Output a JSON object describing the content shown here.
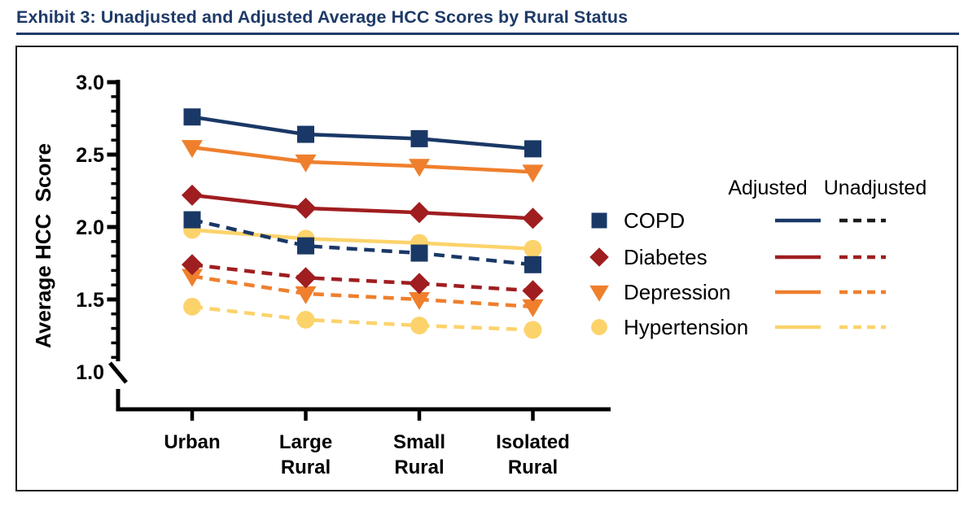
{
  "header": {
    "title": "Exhibit 3: Unadjusted and Adjusted Average HCC Scores by Rural Status"
  },
  "colors": {
    "title_navy": "#1e3a68",
    "axis_black": "#000000",
    "copd_navy": "#1a3866",
    "diabetes_red": "#a01d20",
    "depression_orange": "#ef7f2d",
    "hypertension_yellow": "#fcd36b",
    "legend_unadjusted_copd_black": "#1a1a1a"
  },
  "chart_data": {
    "type": "line",
    "title": "Exhibit 3: Unadjusted and Adjusted Average HCC Scores by Rural Status",
    "xlabel": "",
    "ylabel": "Average HCC  Score",
    "categories": [
      "Urban",
      "Large Rural",
      "Small Rural",
      "Isolated Rural"
    ],
    "x_tick_lines": [
      [
        "Urban"
      ],
      [
        "Large",
        "Rural"
      ],
      [
        "Small",
        "Rural"
      ],
      [
        "Isolated",
        "Rural"
      ]
    ],
    "y_ticks": [
      3.0,
      2.5,
      2.0,
      1.5,
      1.0
    ],
    "y_tick_labels": [
      "3.0",
      "2.5",
      "2.0",
      "1.5",
      "1.0"
    ],
    "ylim": [
      1.0,
      3.0
    ],
    "y_minor_tick_step": 0.1,
    "y_axis_break": true,
    "grid": false,
    "series": [
      {
        "name": "COPD",
        "variant": "Adjusted",
        "style": "solid",
        "marker": "square",
        "color": "#1a3866",
        "values": [
          2.76,
          2.64,
          2.61,
          2.54
        ]
      },
      {
        "name": "COPD",
        "variant": "Unadjusted",
        "style": "dashed",
        "marker": "square",
        "color": "#1a3866",
        "values": [
          2.05,
          1.87,
          1.82,
          1.74
        ]
      },
      {
        "name": "Diabetes",
        "variant": "Adjusted",
        "style": "solid",
        "marker": "diamond",
        "color": "#a01d20",
        "values": [
          2.22,
          2.13,
          2.1,
          2.06
        ]
      },
      {
        "name": "Diabetes",
        "variant": "Unadjusted",
        "style": "dashed",
        "marker": "diamond",
        "color": "#a01d20",
        "values": [
          1.74,
          1.65,
          1.61,
          1.56
        ]
      },
      {
        "name": "Depression",
        "variant": "Adjusted",
        "style": "solid",
        "marker": "triangle-down",
        "color": "#ef7f2d",
        "values": [
          2.55,
          2.45,
          2.42,
          2.38
        ]
      },
      {
        "name": "Depression",
        "variant": "Unadjusted",
        "style": "dashed",
        "marker": "triangle-down",
        "color": "#ef7f2d",
        "values": [
          1.66,
          1.54,
          1.5,
          1.45
        ]
      },
      {
        "name": "Hypertension",
        "variant": "Adjusted",
        "style": "solid",
        "marker": "circle",
        "color": "#fcd36b",
        "values": [
          1.98,
          1.92,
          1.89,
          1.85
        ]
      },
      {
        "name": "Hypertension",
        "variant": "Unadjusted",
        "style": "dashed",
        "marker": "circle",
        "color": "#fcd36b",
        "values": [
          1.45,
          1.36,
          1.32,
          1.29
        ]
      }
    ],
    "legend": {
      "position": "right",
      "col_headers": [
        "Adjusted",
        "Unadjusted"
      ],
      "entries": [
        {
          "label": "COPD",
          "marker": "square",
          "marker_color": "#1a3866",
          "adjusted_color": "#1a3866",
          "unadjusted_color": "#1a1a1a"
        },
        {
          "label": "Diabetes",
          "marker": "diamond",
          "marker_color": "#a01d20",
          "adjusted_color": "#a01d20",
          "unadjusted_color": "#a01d20"
        },
        {
          "label": "Depression",
          "marker": "triangle-down",
          "marker_color": "#ef7f2d",
          "adjusted_color": "#ef7f2d",
          "unadjusted_color": "#ef7f2d"
        },
        {
          "label": "Hypertension",
          "marker": "circle",
          "marker_color": "#fcd36b",
          "adjusted_color": "#fcd36b",
          "unadjusted_color": "#fcd36b"
        }
      ]
    }
  }
}
